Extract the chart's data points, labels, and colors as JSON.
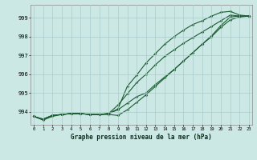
{
  "xlabel_label": "Graphe pression niveau de la mer (hPa)",
  "x_ticks": [
    0,
    1,
    2,
    3,
    4,
    5,
    6,
    7,
    8,
    9,
    10,
    11,
    12,
    13,
    14,
    15,
    16,
    17,
    18,
    19,
    20,
    21,
    22,
    23
  ],
  "ylim": [
    993.3,
    999.7
  ],
  "xlim": [
    -0.3,
    23.3
  ],
  "yticks": [
    994,
    995,
    996,
    997,
    998,
    999
  ],
  "background_color": "#cce8e4",
  "grid_color": "#aacccc",
  "line_color": "#1a5c30",
  "line1": [
    993.75,
    993.6,
    993.8,
    993.85,
    993.9,
    993.9,
    993.85,
    993.85,
    993.85,
    993.8,
    994.1,
    994.5,
    994.9,
    995.35,
    995.8,
    996.25,
    996.7,
    997.15,
    997.6,
    998.0,
    998.5,
    998.9,
    999.05,
    999.1
  ],
  "line2": [
    993.75,
    993.6,
    993.8,
    993.85,
    993.9,
    993.9,
    993.85,
    993.85,
    993.9,
    994.35,
    994.95,
    995.55,
    996.0,
    996.5,
    996.95,
    997.3,
    997.65,
    997.95,
    998.25,
    998.55,
    998.85,
    999.15,
    999.1,
    999.1
  ],
  "line3": [
    993.75,
    993.6,
    993.8,
    993.85,
    993.9,
    993.9,
    993.85,
    993.85,
    993.9,
    994.15,
    995.35,
    995.95,
    996.6,
    997.1,
    997.6,
    998.0,
    998.35,
    998.65,
    998.85,
    999.1,
    999.3,
    999.35,
    999.15,
    999.1
  ],
  "line4": [
    993.75,
    993.55,
    993.75,
    993.85,
    993.9,
    993.9,
    993.85,
    993.85,
    993.9,
    994.1,
    994.45,
    994.8,
    995.0,
    995.45,
    995.85,
    996.25,
    996.7,
    997.15,
    997.6,
    998.05,
    998.6,
    999.05,
    999.1,
    999.1
  ]
}
